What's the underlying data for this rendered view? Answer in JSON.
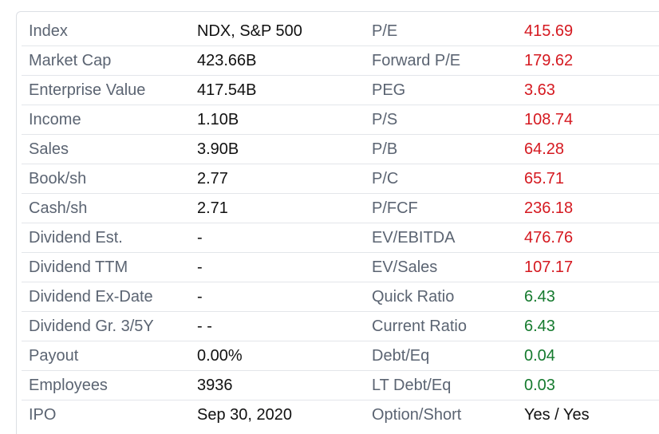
{
  "colors": {
    "label": "#5b6472",
    "value": "#111111",
    "negative": "#d51920",
    "positive": "#157a2e",
    "border": "#e3e6ea"
  },
  "rows": [
    {
      "label1": "Index",
      "value1": "NDX, S&P 500",
      "label2": "P/E",
      "value2": "415.69",
      "value2_tone": "red"
    },
    {
      "label1": "Market Cap",
      "value1": "423.66B",
      "label2": "Forward P/E",
      "value2": "179.62",
      "value2_tone": "red"
    },
    {
      "label1": "Enterprise Value",
      "value1": "417.54B",
      "label2": "PEG",
      "value2": "3.63",
      "value2_tone": "red"
    },
    {
      "label1": "Income",
      "value1": "1.10B",
      "label2": "P/S",
      "value2": "108.74",
      "value2_tone": "red"
    },
    {
      "label1": "Sales",
      "value1": "3.90B",
      "label2": "P/B",
      "value2": "64.28",
      "value2_tone": "red"
    },
    {
      "label1": "Book/sh",
      "value1": "2.77",
      "label2": "P/C",
      "value2": "65.71",
      "value2_tone": "red"
    },
    {
      "label1": "Cash/sh",
      "value1": "2.71",
      "label2": "P/FCF",
      "value2": "236.18",
      "value2_tone": "red"
    },
    {
      "label1": "Dividend Est.",
      "value1": "-",
      "label2": "EV/EBITDA",
      "value2": "476.76",
      "value2_tone": "red"
    },
    {
      "label1": "Dividend TTM",
      "value1": "-",
      "label2": "EV/Sales",
      "value2": "107.17",
      "value2_tone": "red"
    },
    {
      "label1": "Dividend Ex-Date",
      "value1": "-",
      "label2": "Quick Ratio",
      "value2": "6.43",
      "value2_tone": "green"
    },
    {
      "label1": "Dividend Gr. 3/5Y",
      "value1": "- -",
      "label2": "Current Ratio",
      "value2": "6.43",
      "value2_tone": "green"
    },
    {
      "label1": "Payout",
      "value1": "0.00%",
      "label2": "Debt/Eq",
      "value2": "0.04",
      "value2_tone": "green"
    },
    {
      "label1": "Employees",
      "value1": "3936",
      "label2": "LT Debt/Eq",
      "value2": "0.03",
      "value2_tone": "green"
    },
    {
      "label1": "IPO",
      "value1": "Sep 30, 2020",
      "label2": "Option/Short",
      "value2": "Yes / Yes",
      "value2_tone": "black"
    }
  ]
}
